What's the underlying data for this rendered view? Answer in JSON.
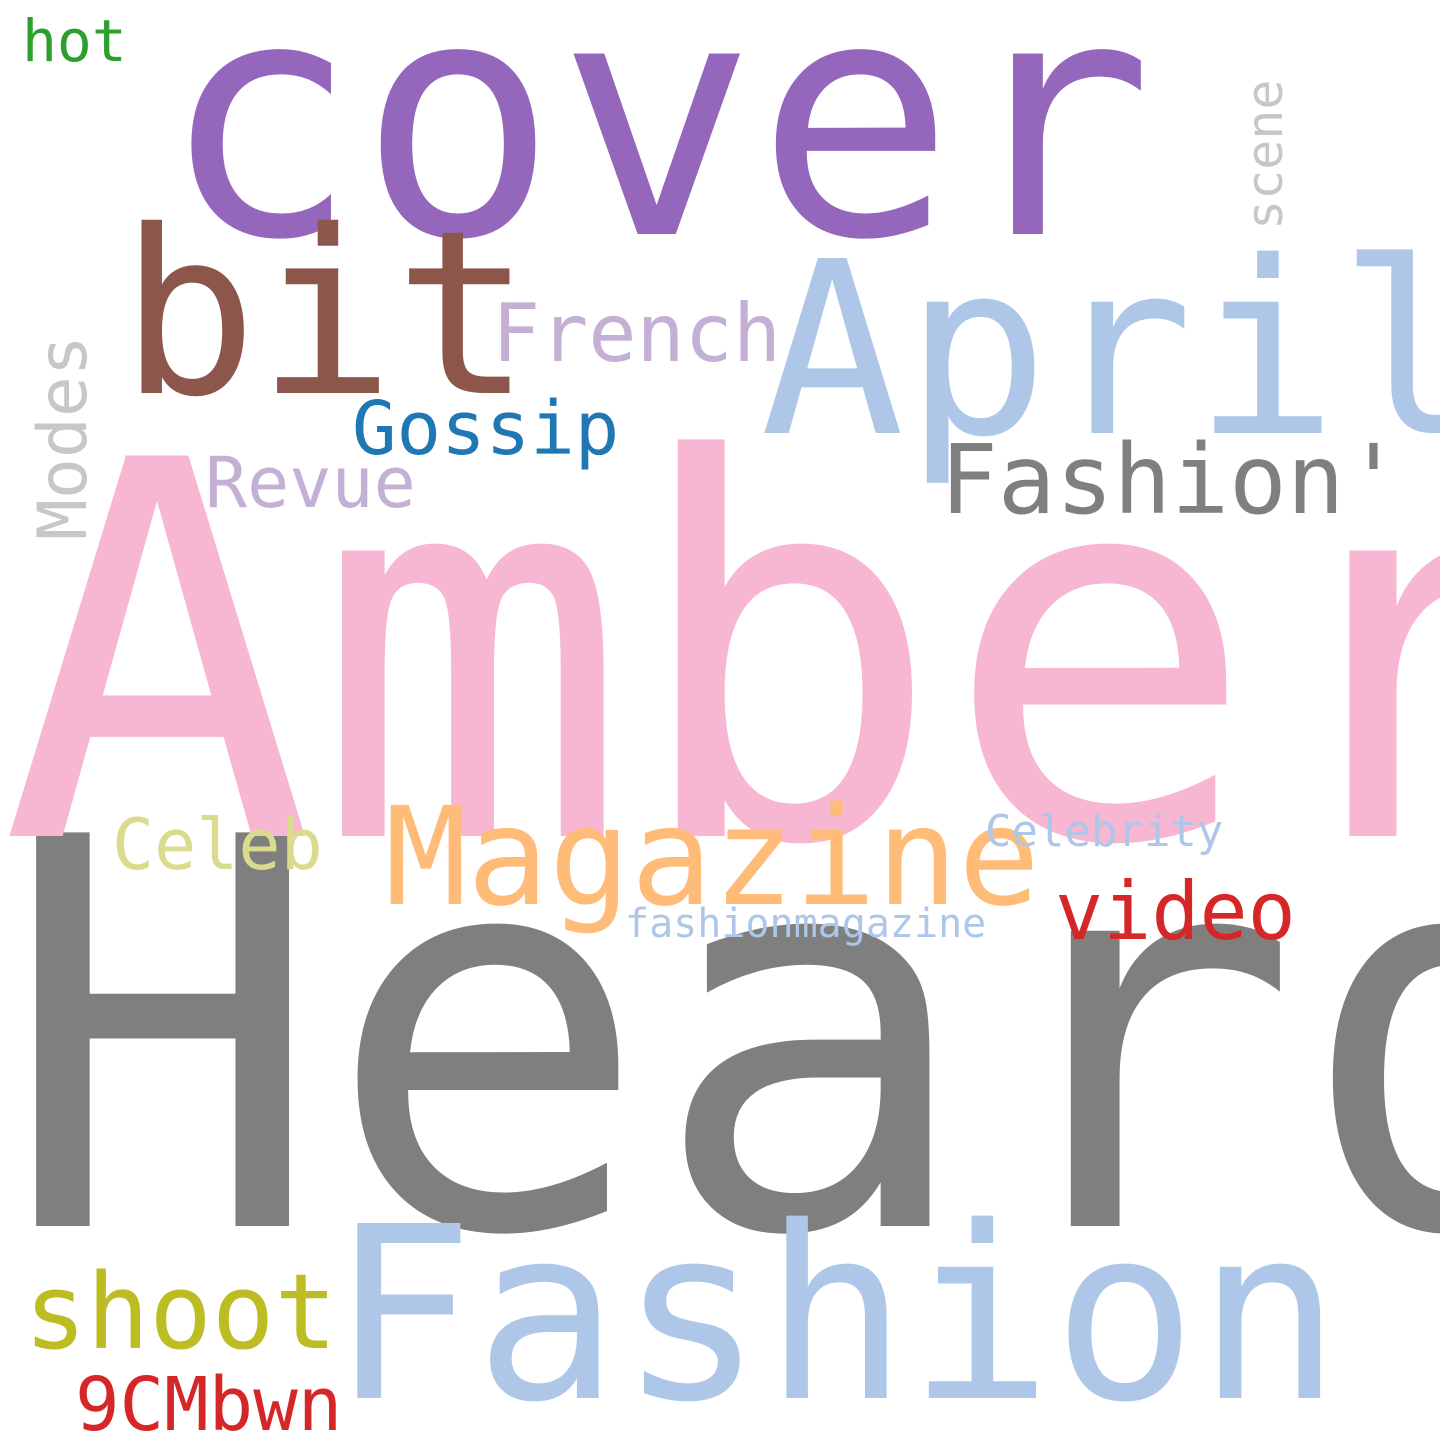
{
  "words": {
    "cover": {
      "text": "cover",
      "color": "#9467bd"
    },
    "hot": {
      "text": "hot",
      "color": "#2ca02c"
    },
    "scene": {
      "text": "scene",
      "color": "#c7c7c7"
    },
    "bit": {
      "text": "bit",
      "color": "#8c564b"
    },
    "april": {
      "text": "April",
      "color": "#aec7e8"
    },
    "french": {
      "text": "French",
      "color": "#c5b0d5"
    },
    "modes": {
      "text": "Modes",
      "color": "#c7c7c7"
    },
    "gossip": {
      "text": "Gossip",
      "color": "#1f77b4"
    },
    "revue": {
      "text": "Revue",
      "color": "#c5b0d5"
    },
    "fashion_quote": {
      "text": "Fashion'",
      "color": "#7f7f7f"
    },
    "amber": {
      "text": "Amber",
      "color": "#f7b6d2"
    },
    "celeb": {
      "text": "Celeb",
      "color": "#dbdb8d"
    },
    "magazine": {
      "text": "Magazine",
      "color": "#ffbb78"
    },
    "celebrity": {
      "text": "Celebrity",
      "color": "#aec7e8"
    },
    "video": {
      "text": "video",
      "color": "#d62728"
    },
    "fashionmagazine": {
      "text": "fashionmagazine",
      "color": "#aec7e8"
    },
    "heard": {
      "text": "Heard",
      "color": "#7f7f7f"
    },
    "shoot": {
      "text": "shoot",
      "color": "#bcbd22"
    },
    "fashion": {
      "text": "Fashion",
      "color": "#aec7e8"
    },
    "9cmbwn": {
      "text": "9CMbwn",
      "color": "#d62728"
    }
  }
}
